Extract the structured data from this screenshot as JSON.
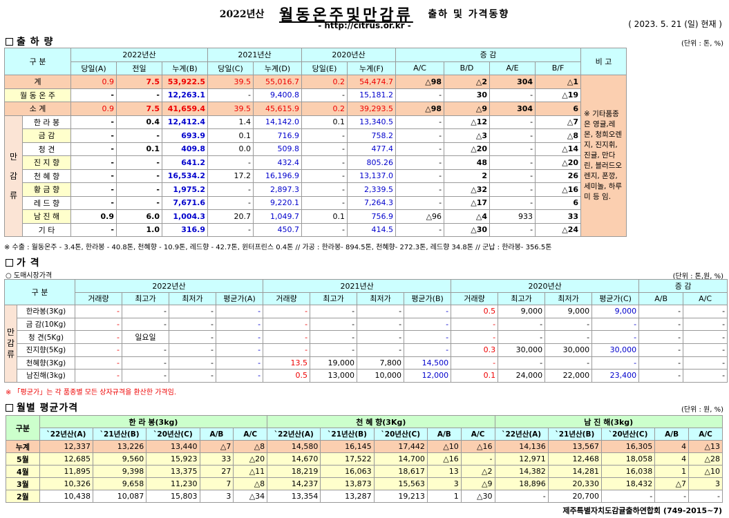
{
  "header": {
    "year_label": "2022년산",
    "title": "월동온주및만감류",
    "subtitle": "출하 및 가격동향",
    "url": "- http://citrus.or.kr -",
    "asof": "( 2023.  5.  21 (일) 현재 )"
  },
  "sec1": {
    "title": "출 하 량",
    "unit": "(단위 : 톤, %)"
  },
  "t1": {
    "corner": "구   분",
    "y2022": "2022년산",
    "y2021": "2021년산",
    "y2020": "2020년산",
    "inc": "증   감",
    "remark": "비 고",
    "sub": [
      "당일(A)",
      "전일",
      "누계(B)",
      "당일(C)",
      "누계(D)",
      "당일(E)",
      "누계(F)",
      "A/C",
      "B/D",
      "A/E",
      "B/F"
    ],
    "rows": [
      {
        "label": "계",
        "v": [
          "0.9",
          "7.5",
          "53,922.5",
          "39.5",
          "55,016.7",
          "0.2",
          "54,474.7",
          "△98",
          "△2",
          "304",
          "△1"
        ]
      },
      {
        "label": "월 동 온 주",
        "v": [
          "-",
          "-",
          "12,263.1",
          "-",
          "9,400.8",
          "-",
          "15,181.2",
          "-",
          "30",
          "-",
          "△19"
        ]
      },
      {
        "label": "소   계",
        "v": [
          "0.9",
          "7.5",
          "41,659.4",
          "39.5",
          "45,615.9",
          "0.2",
          "39,293.5",
          "△98",
          "△9",
          "304",
          "6"
        ]
      }
    ],
    "group_label": "만\n\n감\n\n류",
    "sub_rows": [
      {
        "label": "한 라 봉",
        "v": [
          "-",
          "0.4",
          "12,412.4",
          "1.4",
          "14,142.0",
          "0.1",
          "13,340.5",
          "-",
          "△12",
          "-",
          "△7"
        ]
      },
      {
        "label": "금   감",
        "v": [
          "-",
          "-",
          "693.9",
          "0.1",
          "716.9",
          "-",
          "758.2",
          "-",
          "△3",
          "-",
          "△8"
        ]
      },
      {
        "label": "청   견",
        "v": [
          "-",
          "0.1",
          "409.8",
          "0.0",
          "509.8",
          "-",
          "477.4",
          "-",
          "△20",
          "-",
          "△14"
        ]
      },
      {
        "label": "진 지 향",
        "v": [
          "-",
          "-",
          "641.2",
          "-",
          "432.4",
          "-",
          "805.26",
          "-",
          "48",
          "-",
          "△20"
        ]
      },
      {
        "label": "천 혜 향",
        "v": [
          "-",
          "-",
          "16,534.2",
          "17.2",
          "16,196.9",
          "-",
          "13,137.0",
          "-",
          "2",
          "-",
          "26"
        ]
      },
      {
        "label": "황 금 향",
        "v": [
          "-",
          "-",
          "1,975.2",
          "-",
          "2,897.3",
          "-",
          "2,339.5",
          "-",
          "△32",
          "-",
          "△16"
        ]
      },
      {
        "label": "레 드 향",
        "v": [
          "-",
          "-",
          "7,671.6",
          "-",
          "9,220.1",
          "-",
          "7,264.3",
          "-",
          "△17",
          "-",
          "6"
        ]
      },
      {
        "label": "남 진 해",
        "v": [
          "0.9",
          "6.0",
          "1,004.3",
          "20.7",
          "1,049.7",
          "0.1",
          "756.9",
          "△96",
          "△4",
          "933",
          "33"
        ]
      },
      {
        "label": "기   타",
        "v": [
          "-",
          "1.0",
          "316.9",
          "-",
          "450.7",
          "-",
          "414.5",
          "-",
          "△30",
          "-",
          "△24"
        ]
      }
    ],
    "remark_text": "※ 기타품종은 영귤,레몬, 청희오렌지, 진지휘, 진귤, 만다린, 블러드오렌지, 폰깡,세미놀, 하루미 등 임."
  },
  "note1": "※ 수출 : 월동온주 - 3.4톤, 한라봉 - 40.8톤, 천혜향 - 10.9톤, 레드향 - 42.7톤, 윈터프린스 0.4톤 //  가공 :  한라봉- 894.5톤, 천혜향- 272.3톤, 레드향 34.8톤  //  군납 : 한라봉- 356.5톤",
  "sec2": {
    "title": "가       격",
    "subtitle": "○ 도매시장가격",
    "unit": "(단위 : 톤,원, %)"
  },
  "t2": {
    "corner": "구   분",
    "y2022": "2022년산",
    "y2021": "2021년산",
    "y2020": "2020년산",
    "inc": "증   감",
    "sub": [
      "거래량",
      "최고가",
      "최저가",
      "평균가(A)",
      "거래량",
      "최고가",
      "최저가",
      "평균가(B)",
      "거래량",
      "최고가",
      "최저가",
      "평균가(C)",
      "A/B",
      "A/C"
    ],
    "group_label": "만\n감\n류",
    "rows": [
      {
        "label": "한라봉(3Kg)",
        "v": [
          "-",
          "-",
          "-",
          "-",
          "-",
          "-",
          "-",
          "-",
          "0.5",
          "9,000",
          "9,000",
          "9,000",
          "-",
          "-"
        ]
      },
      {
        "label": "금 감(10Kg)",
        "v": [
          "-",
          "-",
          "-",
          "-",
          "-",
          "-",
          "-",
          "-",
          "-",
          "-",
          "-",
          "-",
          "-",
          "-"
        ]
      },
      {
        "label": "청   견(5Kg)",
        "v": [
          "-",
          "일요일",
          "-",
          "-",
          "-",
          "-",
          "-",
          "-",
          "-",
          "-",
          "-",
          "-",
          "-",
          "-"
        ]
      },
      {
        "label": "진지향(5Kg)",
        "v": [
          "-",
          "-",
          "-",
          "-",
          "-",
          "-",
          "-",
          "-",
          "0.3",
          "30,000",
          "30,000",
          "30,000",
          "-",
          "-"
        ]
      },
      {
        "label": "천혜향(3Kg)",
        "v": [
          "-",
          "-",
          "-",
          "-",
          "13.5",
          "19,000",
          "7,800",
          "14,500",
          "-",
          "-",
          "-",
          "-",
          "-",
          "-"
        ]
      },
      {
        "label": "남진해(3kg)",
        "v": [
          "-",
          "-",
          "-",
          "-",
          "0.5",
          "13,000",
          "10,000",
          "12,000",
          "0.1",
          "24,000",
          "22,000",
          "23,400",
          "-",
          "-"
        ]
      }
    ]
  },
  "note2": "※ 「평균가」는 각 품종별 모든 상자규격을 환산한 가격임.",
  "sec3": {
    "title": "월별 평균가격",
    "unit": "(단위 : 원, %)"
  },
  "t3": {
    "corner": "구분",
    "groups": [
      "한 라 봉(3kg)",
      "천 혜 향(3Kg)",
      "남 진 해(3kg)"
    ],
    "sub": [
      "`22년산(A)",
      "`21년산(B)",
      "`20년산(C)",
      "A/B",
      "A/C"
    ],
    "rows": [
      {
        "label": "누계",
        "v": [
          "12,337",
          "13,226",
          "13,440",
          "△7",
          "△8",
          "14,580",
          "16,145",
          "17,442",
          "△10",
          "△16",
          "14,136",
          "13,567",
          "16,305",
          "4",
          "△13"
        ]
      },
      {
        "label": "5월",
        "v": [
          "12,685",
          "9,560",
          "15,923",
          "33",
          "△20",
          "14,670",
          "17,522",
          "14,700",
          "△16",
          "-",
          "12,971",
          "12,468",
          "18,058",
          "4",
          "△28"
        ]
      },
      {
        "label": "4월",
        "v": [
          "11,895",
          "9,398",
          "13,375",
          "27",
          "△11",
          "18,219",
          "16,063",
          "18,617",
          "13",
          "△2",
          "14,382",
          "14,281",
          "16,038",
          "1",
          "△10"
        ]
      },
      {
        "label": "3월",
        "v": [
          "10,326",
          "9,658",
          "11,230",
          "7",
          "△8",
          "14,237",
          "13,873",
          "15,563",
          "3",
          "△9",
          "18,896",
          "20,330",
          "18,432",
          "△7",
          "3"
        ]
      },
      {
        "label": "2월",
        "v": [
          "10,438",
          "10,087",
          "15,803",
          "3",
          "△34",
          "13,354",
          "13,287",
          "19,213",
          "1",
          "△30",
          "-",
          "20,700",
          "-",
          "-",
          "-"
        ]
      }
    ]
  },
  "footer": "제주특별자치도감귤출하연합회 (749-2015~7)"
}
